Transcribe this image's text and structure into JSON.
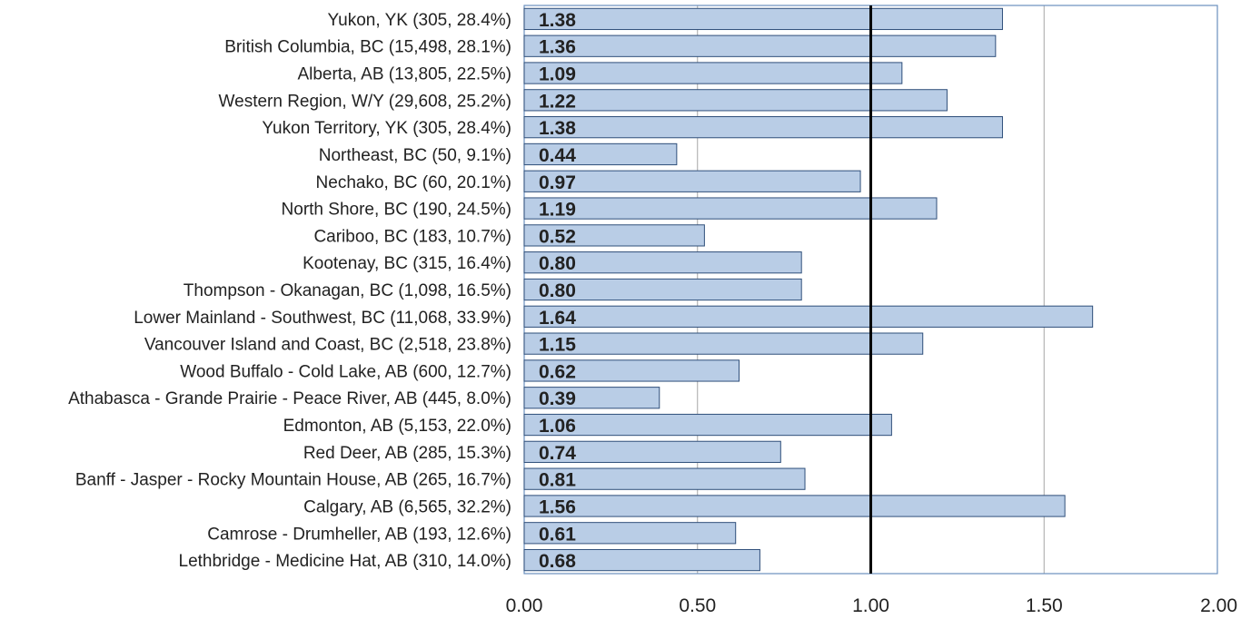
{
  "chart_data": {
    "type": "bar",
    "orientation": "horizontal",
    "title": "",
    "xlabel": "",
    "ylabel": "",
    "xlim": [
      0,
      2
    ],
    "x_ticks": [
      "0.00",
      "0.50",
      "1.00",
      "1.50",
      "2.00"
    ],
    "x_tick_values": [
      0,
      0.5,
      1,
      1.5,
      2
    ],
    "reference_line": 1.0,
    "grid": true,
    "legend": "none",
    "categories": [
      "Yukon, YK (305, 28.4%)",
      "British Columbia, BC (15,498, 28.1%)",
      "Alberta, AB (13,805, 22.5%)",
      "Western Region, W/Y (29,608, 25.2%)",
      "Yukon Territory, YK (305, 28.4%)",
      "Northeast, BC (50, 9.1%)",
      "Nechako, BC (60, 20.1%)",
      "North Shore, BC (190, 24.5%)",
      "Cariboo, BC (183, 10.7%)",
      "Kootenay, BC (315, 16.4%)",
      "Thompson - Okanagan, BC (1,098, 16.5%)",
      "Lower Mainland - Southwest, BC (11,068, 33.9%)",
      "Vancouver Island and Coast, BC (2,518, 23.8%)",
      "Wood Buffalo - Cold Lake, AB (600, 12.7%)",
      "Athabasca - Grande Prairie - Peace River, AB (445, 8.0%)",
      "Edmonton, AB (5,153, 22.0%)",
      "Red Deer, AB (285, 15.3%)",
      "Banff - Jasper - Rocky Mountain House, AB (265, 16.7%)",
      "Calgary, AB (6,565, 32.2%)",
      "Camrose - Drumheller, AB (193, 12.6%)",
      "Lethbridge - Medicine Hat, AB (310, 14.0%)"
    ],
    "values": [
      1.38,
      1.36,
      1.09,
      1.22,
      1.38,
      0.44,
      0.97,
      1.19,
      0.52,
      0.8,
      0.8,
      1.64,
      1.15,
      0.62,
      0.39,
      1.06,
      0.74,
      0.81,
      1.56,
      0.61,
      0.68
    ],
    "value_labels": [
      "1.38",
      "1.36",
      "1.09",
      "1.22",
      "1.38",
      "0.44",
      "0.97",
      "1.19",
      "0.52",
      "0.80",
      "0.80",
      "1.64",
      "1.15",
      "0.62",
      "0.39",
      "1.06",
      "0.74",
      "0.81",
      "1.56",
      "0.61",
      "0.68"
    ],
    "colors": {
      "bar_fill": "#b9cde6",
      "bar_stroke": "#2f4f7a",
      "plot_border": "#6a8fbf",
      "grid": "#a6a6a6",
      "reference_line": "#000000",
      "text": "#222222"
    }
  }
}
